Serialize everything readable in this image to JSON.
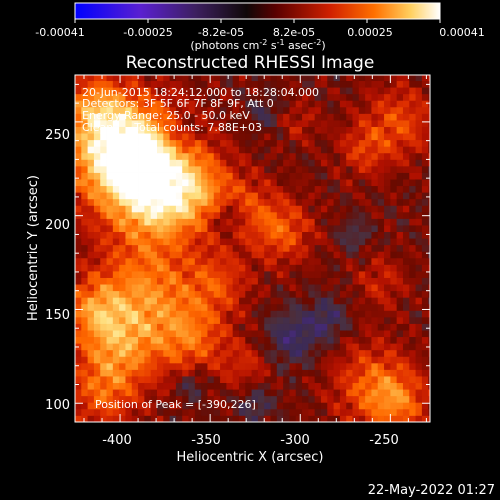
{
  "colorbar": {
    "ticks": [
      "-0.00041",
      "-0.00025",
      "-8.2e-05",
      "8.2e-05",
      "0.00025",
      "0.00041"
    ],
    "unit_prefix": "(photons cm",
    "unit_exp1": "-2",
    "unit_mid": " s",
    "unit_exp2": "-1",
    "unit_mid2": " asec",
    "unit_exp3": "-2",
    "unit_suffix": ")"
  },
  "chart_data": {
    "type": "heatmap",
    "title": "Reconstructed RHESSI Image",
    "xlabel": "Heliocentric X (arcsec)",
    "ylabel": "Heliocentric Y (arcsec)",
    "xlim": [
      -425,
      -228
    ],
    "ylim": [
      90,
      275
    ],
    "x_ticks": [
      "-400",
      "-350",
      "-300",
      "-250"
    ],
    "y_ticks": [
      "100",
      "150",
      "200",
      "250"
    ],
    "annotations": [
      "20-Jun-2015 18:24:12.000 to 18:28:04.000",
      "Detectors: 3F 5F 6F 7F 8F 9F, Att 0",
      "Energy Range: 25.0 - 50.0 keV",
      "Clean      Total counts: 7.88E+03"
    ],
    "peak_label": "Position of Peak = [-390,226]",
    "peak": [
      -390,
      226
    ],
    "color_range": [
      -0.00041,
      0.00041
    ],
    "colors": {
      "background": "#000000",
      "cmap": [
        "#0000ff",
        "#6020c0",
        "#502a90",
        "#3a2a5a",
        "#4a3040",
        "#6a0a00",
        "#b01000",
        "#e03000",
        "#ff6a00",
        "#ffa030",
        "#ffe080",
        "#ffffff"
      ]
    }
  },
  "footer": {
    "date": "22-May-2022 01:27"
  }
}
